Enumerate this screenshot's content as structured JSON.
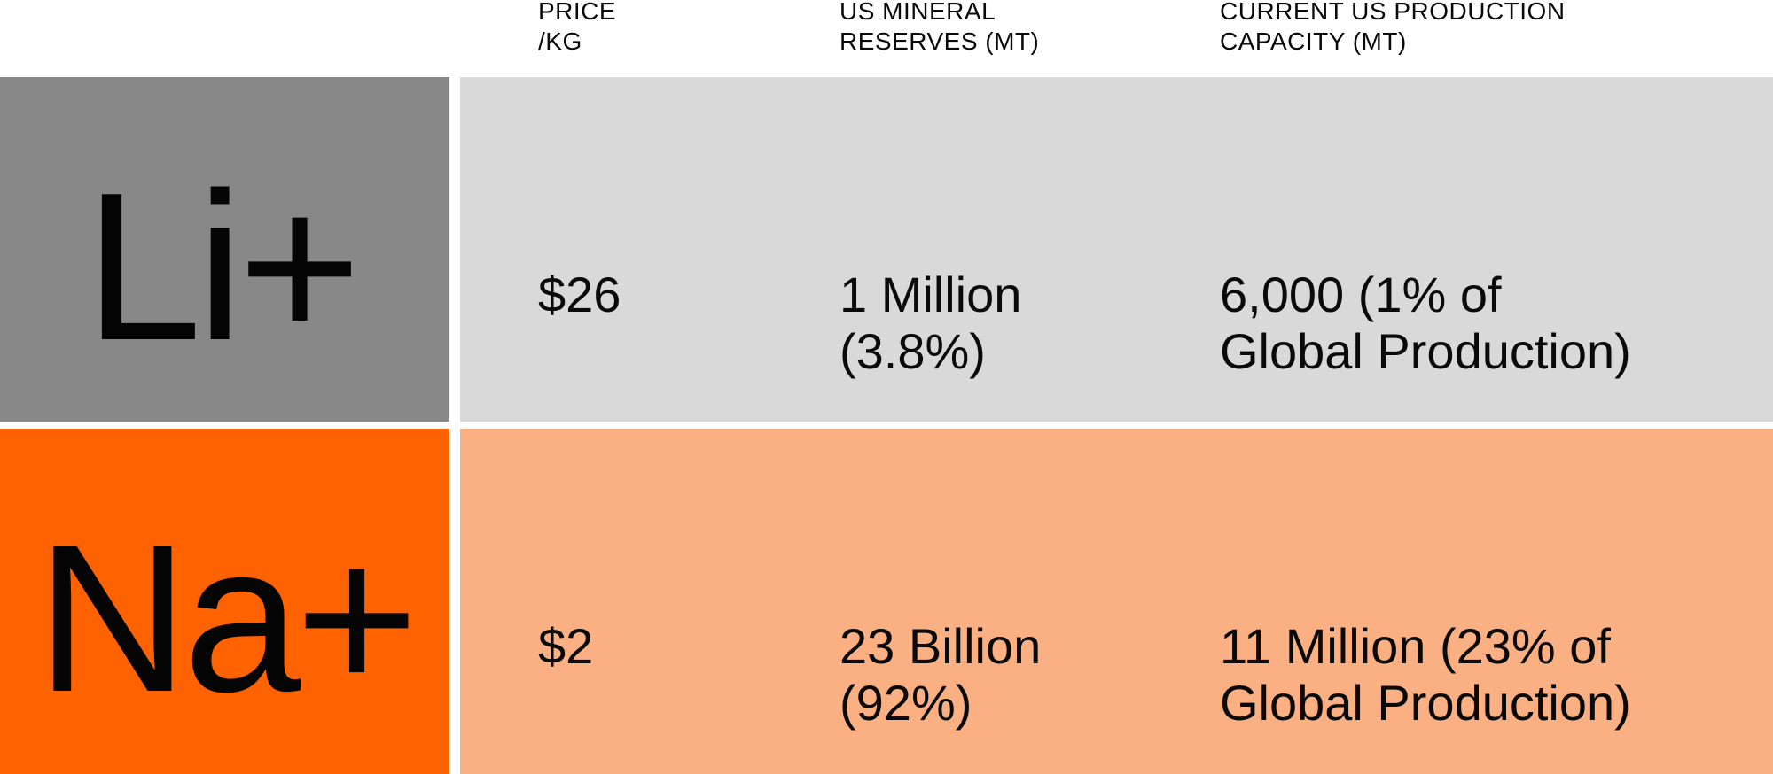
{
  "columns": {
    "price": [
      "PRICE",
      "/KG"
    ],
    "reserves": [
      "US MINERAL",
      "RESERVES (MT)"
    ],
    "capacity": [
      "CURRENT US PRODUCTION",
      "CAPACITY (MT)"
    ]
  },
  "rows": [
    {
      "symbol": "Li+",
      "price": "$26",
      "reserves": [
        "1 Million",
        "(3.8%)"
      ],
      "capacity": [
        "6,000 (1% of",
        "Global Production)"
      ]
    },
    {
      "symbol": "Na+",
      "price": "$2",
      "reserves": [
        "23 Billion",
        "(92%)"
      ],
      "capacity": [
        "11 Million (23% of",
        "Global Production)"
      ]
    }
  ],
  "colors": {
    "lithium_symbol_bg": "#888888",
    "lithium_row_bg": "#d9d9d9",
    "sodium_symbol_bg": "#ff6200",
    "sodium_row_bg": "#fbb084"
  }
}
